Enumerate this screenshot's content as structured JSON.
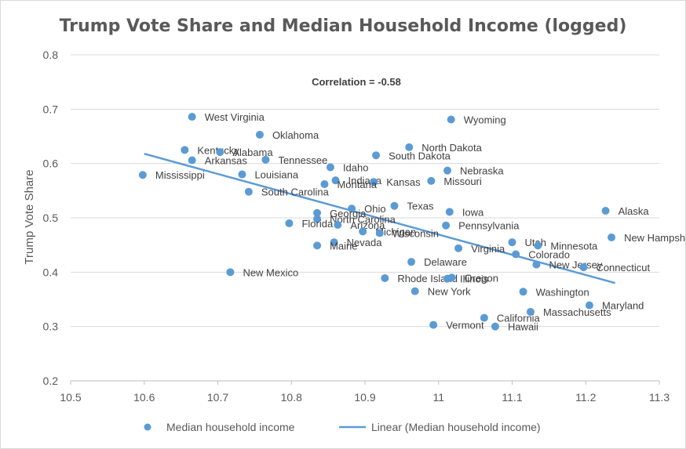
{
  "chart_data": {
    "type": "scatter",
    "title": "Trump Vote Share and Median Household Income (logged)",
    "xlabel": "",
    "ylabel": "Trump Vote Share",
    "xlim": [
      10.5,
      11.3
    ],
    "ylim": [
      0.2,
      0.8
    ],
    "x_ticks": [
      "10.5",
      "10.6",
      "10.7",
      "10.8",
      "10.9",
      "11",
      "11.1",
      "11.2",
      "11.3"
    ],
    "y_ticks": [
      "0.2",
      "0.3",
      "0.4",
      "0.5",
      "0.6",
      "0.7",
      "0.8"
    ],
    "grid": "horizontal",
    "annotation": "Correlation = -0.58",
    "series": [
      {
        "name": "Median household income",
        "points": [
          {
            "label": "West Virginia",
            "x": 10.665,
            "y": 0.686
          },
          {
            "label": "Oklahoma",
            "x": 10.757,
            "y": 0.653
          },
          {
            "label": "Wyoming",
            "x": 11.017,
            "y": 0.681
          },
          {
            "label": "Kentucky",
            "x": 10.655,
            "y": 0.625
          },
          {
            "label": "Alabama",
            "x": 10.703,
            "y": 0.621
          },
          {
            "label": "Arkansas",
            "x": 10.665,
            "y": 0.606
          },
          {
            "label": "Tennessee",
            "x": 10.765,
            "y": 0.607
          },
          {
            "label": "North Dakota",
            "x": 10.96,
            "y": 0.63
          },
          {
            "label": "South Dakota",
            "x": 10.915,
            "y": 0.615
          },
          {
            "label": "Idaho",
            "x": 10.853,
            "y": 0.593
          },
          {
            "label": "Nebraska",
            "x": 11.012,
            "y": 0.587
          },
          {
            "label": "Mississippi",
            "x": 10.598,
            "y": 0.579
          },
          {
            "label": "Louisiana",
            "x": 10.733,
            "y": 0.58
          },
          {
            "label": "Indiana",
            "x": 10.86,
            "y": 0.569
          },
          {
            "label": "Kansas",
            "x": 10.912,
            "y": 0.566
          },
          {
            "label": "Missouri",
            "x": 10.99,
            "y": 0.568
          },
          {
            "label": "Montana",
            "x": 10.845,
            "y": 0.562
          },
          {
            "label": "South Carolina",
            "x": 10.742,
            "y": 0.548
          },
          {
            "label": "Texas",
            "x": 10.94,
            "y": 0.522
          },
          {
            "label": "Ohio",
            "x": 10.882,
            "y": 0.517
          },
          {
            "label": "Alaska",
            "x": 11.227,
            "y": 0.513
          },
          {
            "label": "Iowa",
            "x": 11.015,
            "y": 0.511
          },
          {
            "label": "Georgia",
            "x": 10.835,
            "y": 0.509
          },
          {
            "label": "North Carolina",
            "x": 10.835,
            "y": 0.498
          },
          {
            "label": "Florida",
            "x": 10.797,
            "y": 0.49
          },
          {
            "label": "Arizona",
            "x": 10.863,
            "y": 0.487
          },
          {
            "label": "Pennsylvania",
            "x": 11.01,
            "y": 0.486
          },
          {
            "label": "Michigan",
            "x": 10.897,
            "y": 0.475
          },
          {
            "label": "Wisconsin",
            "x": 10.92,
            "y": 0.472
          },
          {
            "label": "New Hampshire",
            "x": 11.235,
            "y": 0.464
          },
          {
            "label": "Utah",
            "x": 11.1,
            "y": 0.455
          },
          {
            "label": "Nevada",
            "x": 10.858,
            "y": 0.455
          },
          {
            "label": "Maine",
            "x": 10.835,
            "y": 0.449
          },
          {
            "label": "Minnesota",
            "x": 11.135,
            "y": 0.449
          },
          {
            "label": "Virginia",
            "x": 11.027,
            "y": 0.444
          },
          {
            "label": "Colorado",
            "x": 11.105,
            "y": 0.433
          },
          {
            "label": "Delaware",
            "x": 10.963,
            "y": 0.419
          },
          {
            "label": "New Jersey",
            "x": 11.133,
            "y": 0.414
          },
          {
            "label": "Connecticut",
            "x": 11.197,
            "y": 0.409
          },
          {
            "label": "New Mexico",
            "x": 10.717,
            "y": 0.4
          },
          {
            "label": "Rhode Island",
            "x": 10.927,
            "y": 0.389
          },
          {
            "label": "Illinois",
            "x": 11.012,
            "y": 0.388
          },
          {
            "label": "Oregon",
            "x": 11.018,
            "y": 0.39
          },
          {
            "label": "New York",
            "x": 10.968,
            "y": 0.365
          },
          {
            "label": "Washington",
            "x": 11.115,
            "y": 0.364
          },
          {
            "label": "Maryland",
            "x": 11.205,
            "y": 0.339
          },
          {
            "label": "Massachusetts",
            "x": 11.125,
            "y": 0.327
          },
          {
            "label": "California",
            "x": 11.062,
            "y": 0.316
          },
          {
            "label": "Vermont",
            "x": 10.993,
            "y": 0.303
          },
          {
            "label": "Hawaii",
            "x": 11.077,
            "y": 0.3
          }
        ]
      },
      {
        "name": "Linear (Median household income)",
        "type": "line",
        "x": [
          10.6,
          11.24
        ],
        "y": [
          0.618,
          0.38
        ]
      }
    ],
    "legend": "bottom"
  }
}
